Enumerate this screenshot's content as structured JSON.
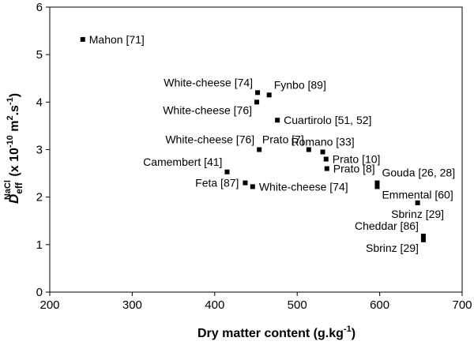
{
  "chart_data": {
    "type": "scatter",
    "title": "",
    "xlabel": "Dry matter content (g.kg",
    "xlabel_sup": "-1",
    "xlabel_close": ")",
    "ylabel_main": "D",
    "ylabel_sub": "eff",
    "ylabel_sup": "NaCl",
    "ylabel_rest": " (x 10",
    "ylabel_exp": "-10",
    "ylabel_units": " m",
    "ylabel_units_sup": "2",
    "ylabel_units_tail": ".s",
    "ylabel_units_tail_sup": "-1",
    "ylabel_close": ")",
    "xlim": [
      200,
      700
    ],
    "ylim": [
      0,
      6
    ],
    "xticks": [
      200,
      300,
      400,
      500,
      600,
      700
    ],
    "yticks": [
      0,
      1,
      2,
      3,
      4,
      5,
      6
    ],
    "grid": false,
    "points": [
      {
        "x": 240,
        "y": 5.32,
        "label": "Mahon [71]",
        "anchor": "right"
      },
      {
        "x": 452,
        "y": 4.2,
        "label": "White-cheese [74]",
        "anchor": "above-left"
      },
      {
        "x": 466,
        "y": 4.15,
        "label": "Fynbo [89]",
        "anchor": "above-right"
      },
      {
        "x": 451,
        "y": 4.0,
        "label": "White-cheese [76]",
        "anchor": "below-left"
      },
      {
        "x": 476,
        "y": 3.62,
        "label": "Cuartirolo [51, 52]",
        "anchor": "right"
      },
      {
        "x": 454,
        "y": 3.0,
        "label": "White-cheese [76]",
        "anchor": "above-left"
      },
      {
        "x": 514,
        "y": 3.0,
        "label": "Prato [7]",
        "anchor": "above-left"
      },
      {
        "x": 531,
        "y": 2.95,
        "label": "Romano [33]",
        "anchor": "above"
      },
      {
        "x": 535,
        "y": 2.8,
        "label": "Prato [10]",
        "anchor": "right"
      },
      {
        "x": 536,
        "y": 2.6,
        "label": "Prato [8]",
        "anchor": "right"
      },
      {
        "x": 415,
        "y": 2.53,
        "label": "Camembert [41]",
        "anchor": "above-left"
      },
      {
        "x": 597,
        "y": 2.3,
        "label": "Gouda [26, 28]",
        "anchor": "above-right"
      },
      {
        "x": 597,
        "y": 2.22,
        "label": "Emmental [60]",
        "anchor": "below-right"
      },
      {
        "x": 437,
        "y": 2.3,
        "label": "Feta [87]",
        "anchor": "left"
      },
      {
        "x": 446,
        "y": 2.22,
        "label": "White-cheese [74]",
        "anchor": "right"
      },
      {
        "x": 646,
        "y": 1.88,
        "label": "Sbrinz [29]",
        "anchor": "below"
      },
      {
        "x": 653,
        "y": 1.18,
        "label": "Cheddar [86]",
        "anchor": "above-left"
      },
      {
        "x": 653,
        "y": 1.1,
        "label": "Sbrinz [29]",
        "anchor": "below-left"
      }
    ]
  }
}
